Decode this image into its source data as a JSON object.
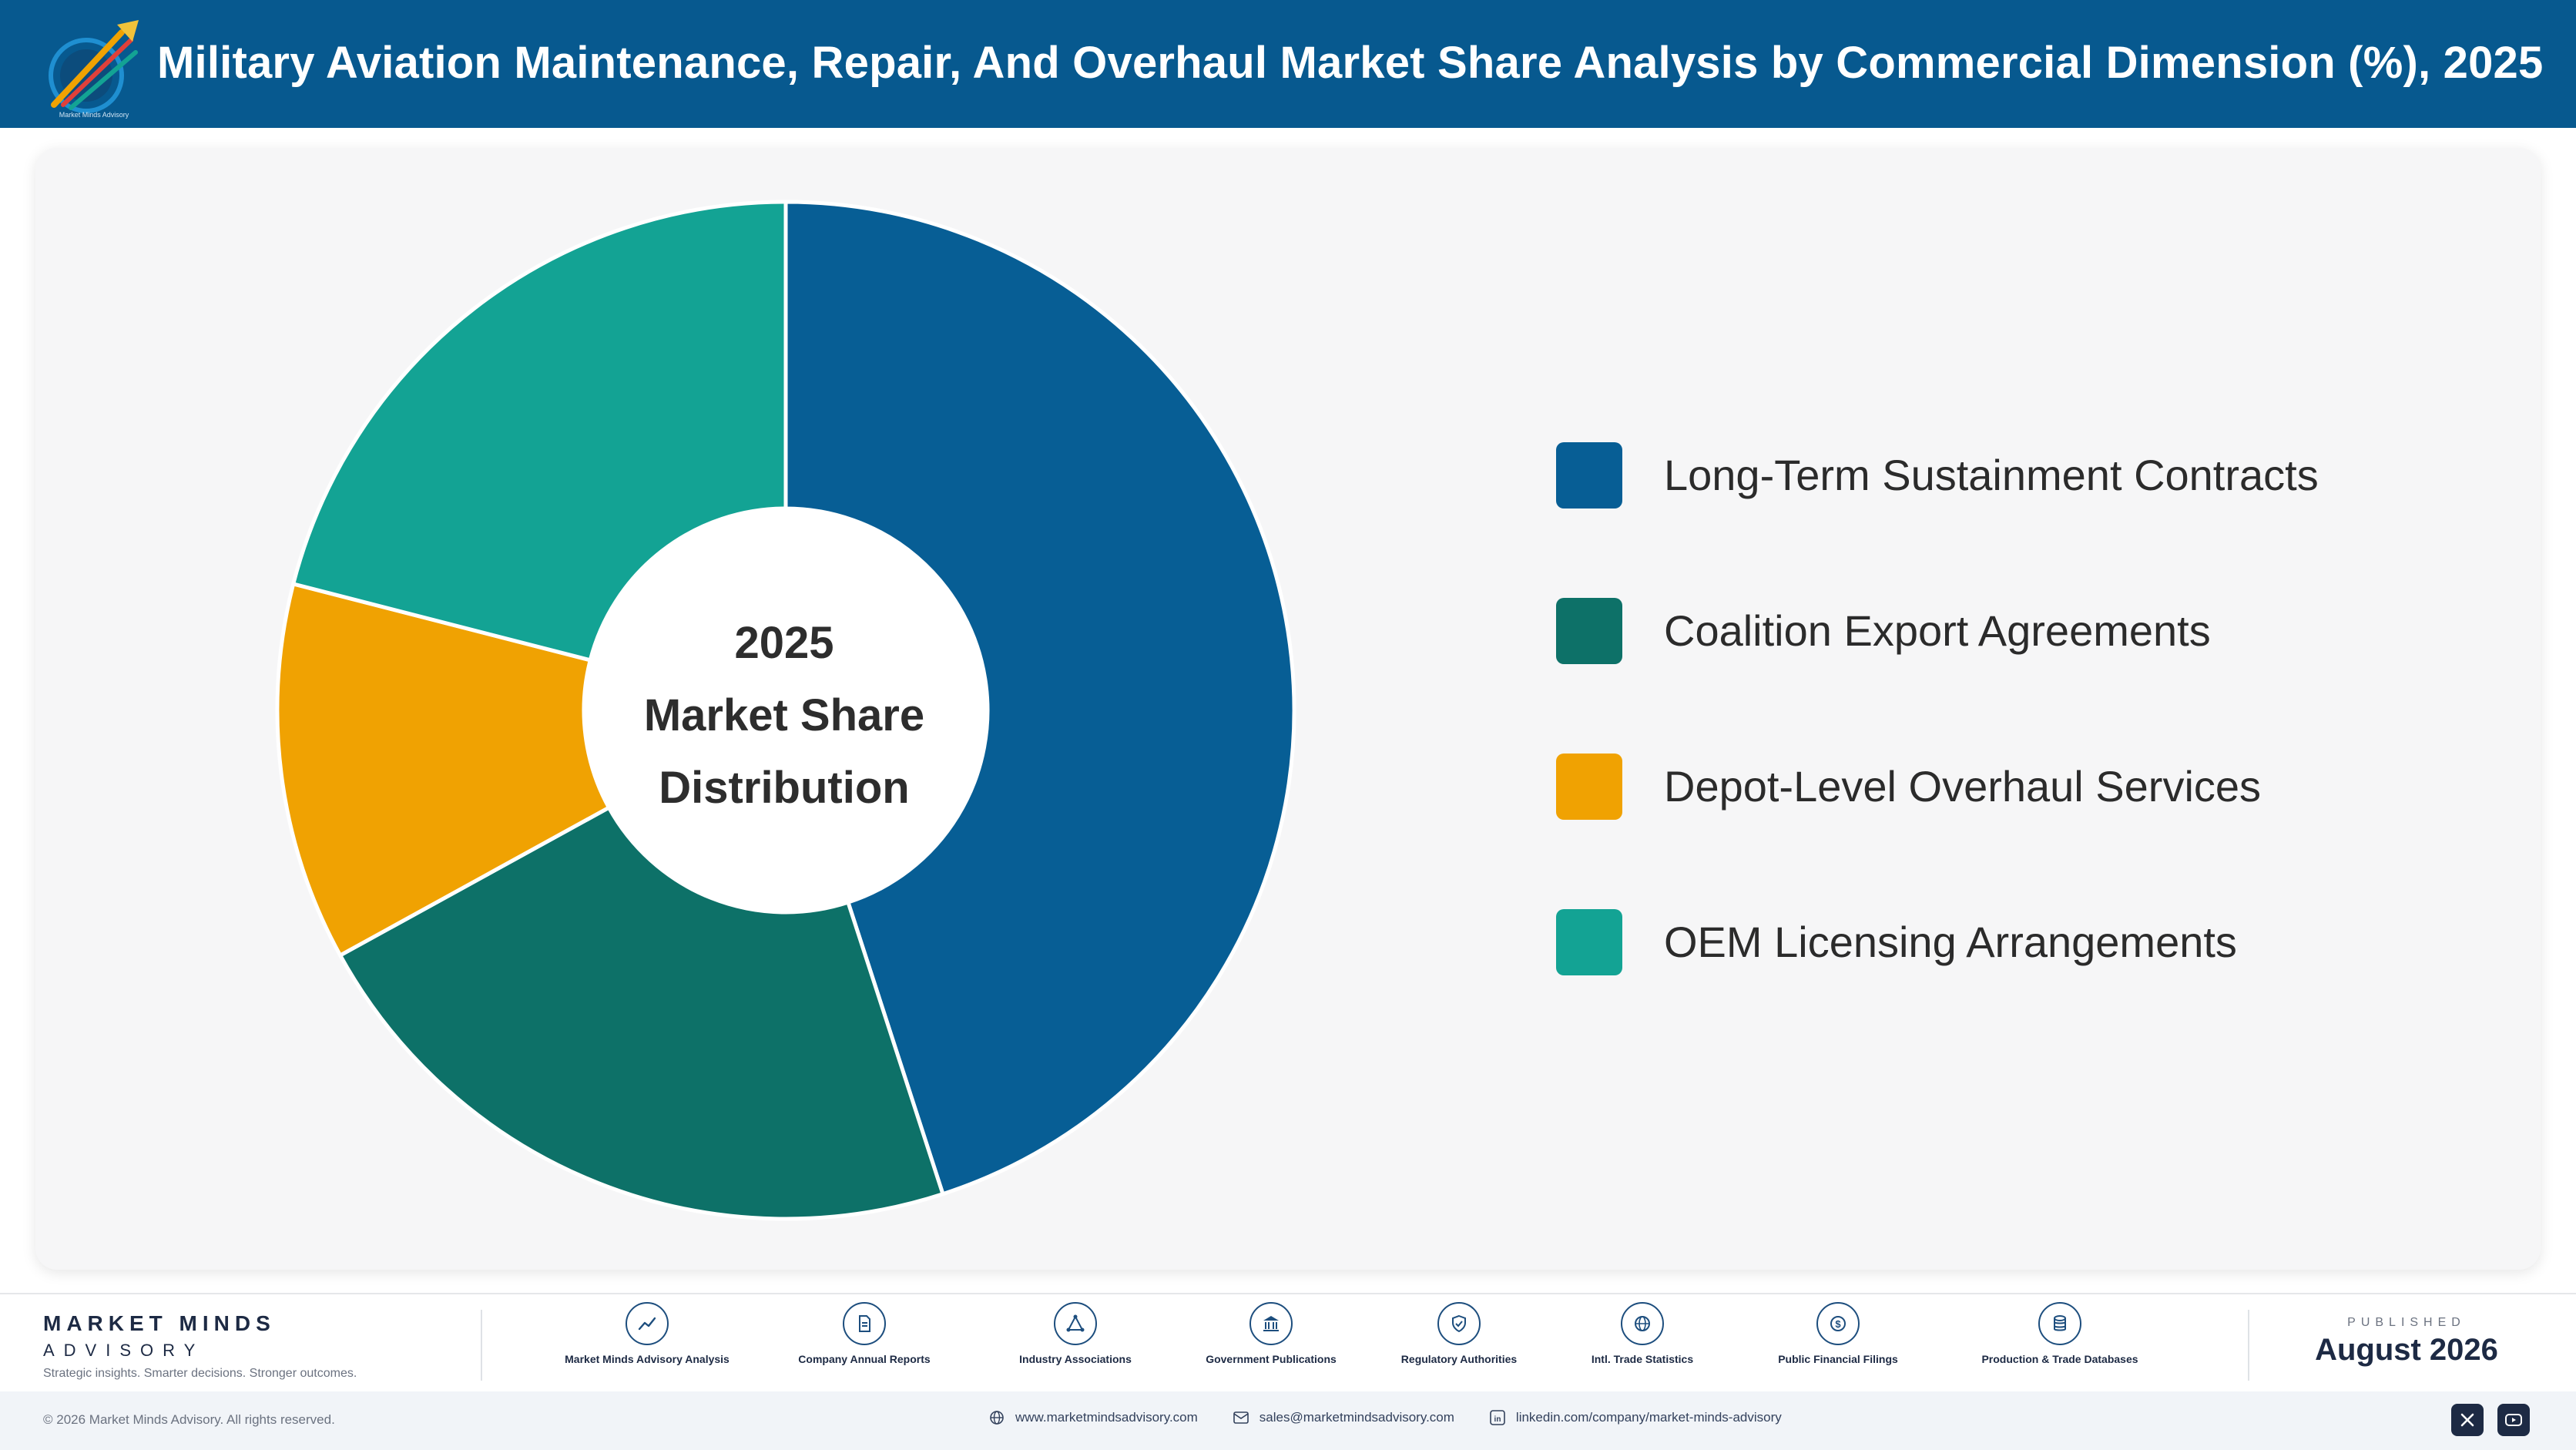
{
  "header": {
    "title": "Military Aviation Maintenance, Repair, And Overhaul Market Share Analysis by Commercial Dimension (%), 2025"
  },
  "chart_data": {
    "type": "pie",
    "title": "Military Aviation Maintenance, Repair, And Overhaul Market Share Analysis by Commercial Dimension (%), 2025",
    "center_label": [
      "2025",
      "Market Share",
      "Distribution"
    ],
    "categories": [
      "Long-Term Sustainment Contracts",
      "Coalition Export Agreements",
      "Depot-Level Overhaul Services",
      "OEM Licensing Arrangements"
    ],
    "values": [
      45,
      22,
      12,
      21
    ],
    "colors": [
      "#075e95",
      "#0d7168",
      "#f0a202",
      "#13a394"
    ],
    "legend_position": "right",
    "donut": true
  },
  "footer": {
    "brand_name": "MARKET MINDS",
    "brand_sub": "ADVISORY",
    "brand_tagline": "Strategic insights. Smarter decisions. Stronger outcomes.",
    "sources": [
      {
        "label": "Market Minds Advisory Analysis",
        "icon": "trend-chart-icon"
      },
      {
        "label": "Company Annual Reports",
        "icon": "document-icon"
      },
      {
        "label": "Industry Associations",
        "icon": "network-icon"
      },
      {
        "label": "Government Publications",
        "icon": "government-building-icon"
      },
      {
        "label": "Regulatory Authorities",
        "icon": "shield-check-icon"
      },
      {
        "label": "Intl. Trade Statistics",
        "icon": "globe-icon"
      },
      {
        "label": "Public Financial Filings",
        "icon": "dollar-coin-icon"
      },
      {
        "label": "Production & Trade Databases",
        "icon": "database-icon"
      }
    ],
    "published_label": "PUBLISHED",
    "published_date": "August 2026"
  },
  "bottom_bar": {
    "copyright": "© 2026 Market Minds Advisory. All rights reserved.",
    "website": "www.marketmindsadvisory.com",
    "email": "sales@marketmindsadvisory.com",
    "linkedin": "linkedin.com/company/market-minds-advisory"
  }
}
